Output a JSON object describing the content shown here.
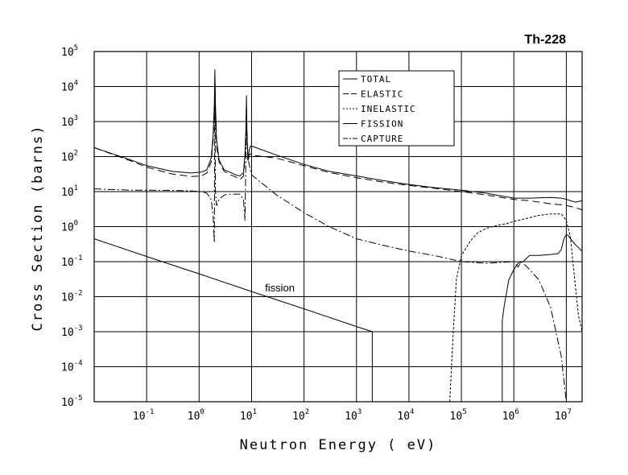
{
  "chart_data": {
    "type": "line",
    "title": "Th-228",
    "xlabel": "Neutron Energy ( eV)",
    "ylabel": "Cross Section (barns)",
    "xscale": "log",
    "yscale": "log",
    "xlim": [
      0.01,
      20000000
    ],
    "ylim": [
      1e-05,
      100000
    ],
    "grid": true,
    "x_ticks": [
      {
        "value": 0.1,
        "base": "10",
        "exp": "-1"
      },
      {
        "value": 1,
        "base": "10",
        "exp": "0"
      },
      {
        "value": 10,
        "base": "10",
        "exp": "1"
      },
      {
        "value": 100,
        "base": "10",
        "exp": "2"
      },
      {
        "value": 1000,
        "base": "10",
        "exp": "3"
      },
      {
        "value": 10000,
        "base": "10",
        "exp": "4"
      },
      {
        "value": 100000,
        "base": "10",
        "exp": "5"
      },
      {
        "value": 1000000,
        "base": "10",
        "exp": "6"
      },
      {
        "value": 10000000,
        "base": "10",
        "exp": "7"
      }
    ],
    "y_ticks": [
      {
        "value": 100000,
        "base": "10",
        "exp": "5"
      },
      {
        "value": 10000,
        "base": "10",
        "exp": "4"
      },
      {
        "value": 1000,
        "base": "10",
        "exp": "3"
      },
      {
        "value": 100,
        "base": "10",
        "exp": "2"
      },
      {
        "value": 10,
        "base": "10",
        "exp": "1"
      },
      {
        "value": 1,
        "base": "10",
        "exp": "0"
      },
      {
        "value": 0.1,
        "base": "10",
        "exp": "-1"
      },
      {
        "value": 0.01,
        "base": "10",
        "exp": "-2"
      },
      {
        "value": 0.001,
        "base": "10",
        "exp": "-3"
      },
      {
        "value": 0.0001,
        "base": "10",
        "exp": "-4"
      },
      {
        "value": 1e-05,
        "base": "10",
        "exp": "-5"
      }
    ],
    "legend_position": "top-right",
    "annotations": [
      {
        "text": "fission",
        "x": 18,
        "y": 0.014
      }
    ],
    "series": [
      {
        "name": "TOTAL",
        "dash": "solid",
        "x": [
          0.01,
          0.05,
          0.1,
          0.3,
          0.7,
          1.1,
          1.4,
          1.7,
          1.85,
          1.95,
          2.0,
          2.05,
          2.15,
          2.4,
          3,
          4,
          5,
          6,
          7,
          7.5,
          7.8,
          8.0,
          8.2,
          8.5,
          9,
          9.5,
          10,
          30,
          100,
          300,
          1000,
          3000,
          10000,
          30000,
          100000,
          300000,
          1000000,
          2000000,
          5000000,
          8000000,
          10000000,
          15000000,
          20000000
        ],
        "y": [
          180,
          80,
          55,
          38,
          34,
          36,
          42,
          90,
          400,
          3000,
          30000,
          3000,
          300,
          80,
          42,
          35,
          30,
          28,
          35,
          120,
          600,
          5500,
          400,
          80,
          150,
          200,
          200,
          110,
          60,
          38,
          28,
          21,
          16,
          13,
          11,
          9,
          6.5,
          6.5,
          6.8,
          6.5,
          6.0,
          5.0,
          5.5
        ]
      },
      {
        "name": "ELASTIC",
        "dash": "long-dash",
        "x": [
          0.01,
          0.05,
          0.1,
          0.3,
          0.7,
          1.1,
          1.4,
          1.7,
          1.85,
          1.95,
          2.0,
          2.05,
          2.15,
          2.4,
          3,
          4,
          5,
          6,
          7,
          7.5,
          7.8,
          8.0,
          8.2,
          8.5,
          9,
          9.5,
          10,
          30,
          100,
          300,
          1000,
          3000,
          10000,
          30000,
          100000,
          300000,
          1000000,
          2000000,
          5000000,
          8000000,
          10000000,
          15000000,
          20000000
        ],
        "y": [
          180,
          75,
          50,
          32,
          27,
          28,
          34,
          70,
          300,
          1500,
          12000,
          1500,
          200,
          70,
          38,
          30,
          26,
          22,
          28,
          90,
          400,
          3000,
          300,
          70,
          110,
          120,
          110,
          90,
          55,
          35,
          25,
          19,
          15,
          12.5,
          10,
          8,
          6.0,
          5.5,
          4.5,
          4.2,
          4.0,
          3.5,
          3.0
        ]
      },
      {
        "name": "INELASTIC",
        "dash": "short-dash",
        "x": [
          60000,
          70000,
          80000,
          100000,
          150000,
          200000,
          300000,
          500000,
          700000,
          1000000,
          2000000,
          3000000,
          5000000,
          8000000,
          10000000,
          12000000,
          14000000,
          17000000,
          20000000
        ],
        "y": [
          1e-05,
          0.001,
          0.03,
          0.15,
          0.4,
          0.65,
          0.9,
          1.1,
          1.2,
          1.4,
          1.8,
          2.1,
          2.3,
          2.3,
          1.5,
          0.5,
          0.05,
          0.003,
          0.001
        ]
      },
      {
        "name": "FISSION",
        "dash": "solid",
        "x": [
          0.01,
          0.1,
          1,
          10,
          100,
          1000,
          2000,
          2000,
          600000,
          600000,
          650000,
          800000,
          1000000,
          1200000,
          1500000,
          2000000,
          3000000,
          5000000,
          7000000,
          8000000,
          9000000,
          10000000,
          11000000,
          12000000,
          15000000,
          20000000
        ],
        "y": [
          0.45,
          0.14,
          0.045,
          0.014,
          0.0045,
          0.0014,
          0.001,
          1e-05,
          1e-05,
          0.002,
          0.005,
          0.03,
          0.06,
          0.09,
          0.1,
          0.15,
          0.15,
          0.16,
          0.17,
          0.22,
          0.45,
          0.6,
          0.55,
          0.45,
          0.3,
          0.2
        ]
      },
      {
        "name": "CAPTURE",
        "dash": "dash-dot",
        "x": [
          0.01,
          0.05,
          0.1,
          0.3,
          0.7,
          1.1,
          1.4,
          1.7,
          1.85,
          1.95,
          2.0,
          2.05,
          2.15,
          2.4,
          3,
          4,
          5,
          6,
          7,
          7.5,
          7.8,
          8.0,
          8.2,
          8.5,
          9,
          9.5,
          10,
          30,
          100,
          300,
          1000,
          3000,
          10000,
          30000,
          100000,
          300000,
          1000000,
          1200000,
          1400000,
          2000000,
          3000000,
          5000000,
          8000000,
          10000000
        ],
        "y": [
          12,
          11,
          11,
          10.8,
          10.5,
          10,
          9,
          6,
          2,
          0.35,
          18000,
          10,
          4,
          6,
          8,
          8.5,
          8.5,
          8.5,
          6,
          1.5,
          100,
          1200,
          500,
          100,
          60,
          40,
          30,
          8,
          2.5,
          1.0,
          0.45,
          0.3,
          0.2,
          0.15,
          0.1,
          0.09,
          0.1,
          0.07,
          0.1,
          0.06,
          0.03,
          0.005,
          0.0002,
          1e-05
        ]
      }
    ]
  }
}
